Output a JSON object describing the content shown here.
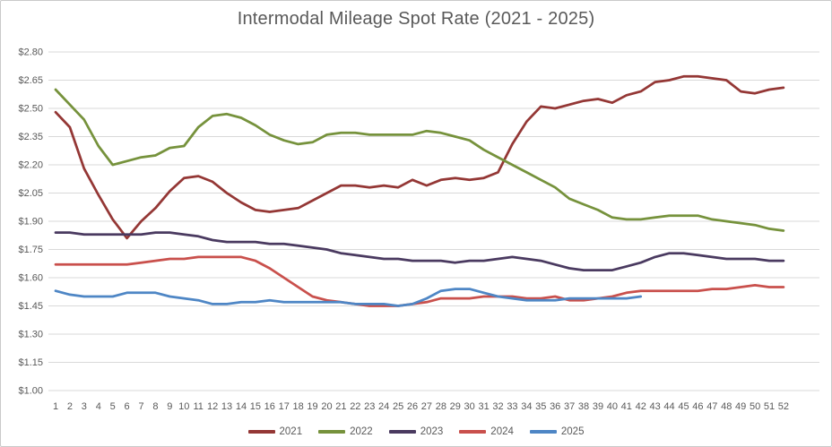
{
  "chart": {
    "title": "Intermodal Mileage Spot Rate (2021 - 2025)"
  },
  "chart_data": {
    "type": "line",
    "title": "Intermodal Mileage Spot Rate (2021 - 2025)",
    "xlabel": "",
    "ylabel": "",
    "x": [
      1,
      2,
      3,
      4,
      5,
      6,
      7,
      8,
      9,
      10,
      11,
      12,
      13,
      14,
      15,
      16,
      17,
      18,
      19,
      20,
      21,
      22,
      23,
      24,
      25,
      26,
      27,
      28,
      29,
      30,
      31,
      32,
      33,
      34,
      35,
      36,
      37,
      38,
      39,
      40,
      41,
      42,
      43,
      44,
      45,
      46,
      47,
      48,
      49,
      50,
      51,
      52
    ],
    "axis": {
      "y_min": 1.0,
      "y_max": 2.8,
      "y_step": 0.15,
      "y_tick_prefix": "$"
    },
    "y_tick_labels": [
      "$2.80",
      "$2.65",
      "$2.50",
      "$2.35",
      "$2.20",
      "$2.05",
      "$1.90",
      "$1.75",
      "$1.60",
      "$1.45",
      "$1.30",
      "$1.15",
      "$1.00"
    ],
    "grid": true,
    "legend_position": "bottom",
    "series": [
      {
        "name": "2021",
        "color": "#943735",
        "values": [
          2.48,
          2.4,
          2.18,
          2.04,
          1.91,
          1.81,
          1.9,
          1.97,
          2.06,
          2.13,
          2.14,
          2.11,
          2.05,
          2.0,
          1.96,
          1.95,
          1.96,
          1.97,
          2.01,
          2.05,
          2.09,
          2.09,
          2.08,
          2.09,
          2.08,
          2.12,
          2.09,
          2.12,
          2.13,
          2.12,
          2.13,
          2.16,
          2.31,
          2.43,
          2.51,
          2.5,
          2.52,
          2.54,
          2.55,
          2.53,
          2.57,
          2.59,
          2.64,
          2.65,
          2.67,
          2.67,
          2.66,
          2.65,
          2.59,
          2.58,
          2.6,
          2.61
        ]
      },
      {
        "name": "2022",
        "color": "#76923C",
        "values": [
          2.6,
          2.52,
          2.44,
          2.3,
          2.2,
          2.22,
          2.24,
          2.25,
          2.29,
          2.3,
          2.4,
          2.46,
          2.47,
          2.45,
          2.41,
          2.36,
          2.33,
          2.31,
          2.32,
          2.36,
          2.37,
          2.37,
          2.36,
          2.36,
          2.36,
          2.36,
          2.38,
          2.37,
          2.35,
          2.33,
          2.28,
          2.24,
          2.2,
          2.16,
          2.12,
          2.08,
          2.02,
          1.99,
          1.96,
          1.92,
          1.91,
          1.91,
          1.92,
          1.93,
          1.93,
          1.93,
          1.91,
          1.9,
          1.89,
          1.88,
          1.86,
          1.85
        ]
      },
      {
        "name": "2023",
        "color": "#4A3A60",
        "values": [
          1.84,
          1.84,
          1.83,
          1.83,
          1.83,
          1.83,
          1.83,
          1.84,
          1.84,
          1.83,
          1.82,
          1.8,
          1.79,
          1.79,
          1.79,
          1.78,
          1.78,
          1.77,
          1.76,
          1.75,
          1.73,
          1.72,
          1.71,
          1.7,
          1.7,
          1.69,
          1.69,
          1.69,
          1.68,
          1.69,
          1.69,
          1.7,
          1.71,
          1.7,
          1.69,
          1.67,
          1.65,
          1.64,
          1.64,
          1.64,
          1.66,
          1.68,
          1.71,
          1.73,
          1.73,
          1.72,
          1.71,
          1.7,
          1.7,
          1.7,
          1.69,
          1.69
        ]
      },
      {
        "name": "2024",
        "color": "#C9504C",
        "values": [
          1.67,
          1.67,
          1.67,
          1.67,
          1.67,
          1.67,
          1.68,
          1.69,
          1.7,
          1.7,
          1.71,
          1.71,
          1.71,
          1.71,
          1.69,
          1.65,
          1.6,
          1.55,
          1.5,
          1.48,
          1.47,
          1.46,
          1.45,
          1.45,
          1.45,
          1.46,
          1.47,
          1.49,
          1.49,
          1.49,
          1.5,
          1.5,
          1.5,
          1.49,
          1.49,
          1.5,
          1.48,
          1.48,
          1.49,
          1.5,
          1.52,
          1.53,
          1.53,
          1.53,
          1.53,
          1.53,
          1.54,
          1.54,
          1.55,
          1.56,
          1.55,
          1.55
        ]
      },
      {
        "name": "2025",
        "color": "#4E86C5",
        "values": [
          1.53,
          1.51,
          1.5,
          1.5,
          1.5,
          1.52,
          1.52,
          1.52,
          1.5,
          1.49,
          1.48,
          1.46,
          1.46,
          1.47,
          1.47,
          1.48,
          1.47,
          1.47,
          1.47,
          1.47,
          1.47,
          1.46,
          1.46,
          1.46,
          1.45,
          1.46,
          1.49,
          1.53,
          1.54,
          1.54,
          1.52,
          1.5,
          1.49,
          1.48,
          1.48,
          1.48,
          1.49,
          1.49,
          1.49,
          1.49,
          1.49,
          1.5
        ]
      }
    ]
  },
  "style_colors": {
    "gridline": "#D9D9D9",
    "axis_text": "#595959",
    "title_text": "#595959",
    "frame_border": "#C9C9C9",
    "background": "#FFFFFF"
  }
}
